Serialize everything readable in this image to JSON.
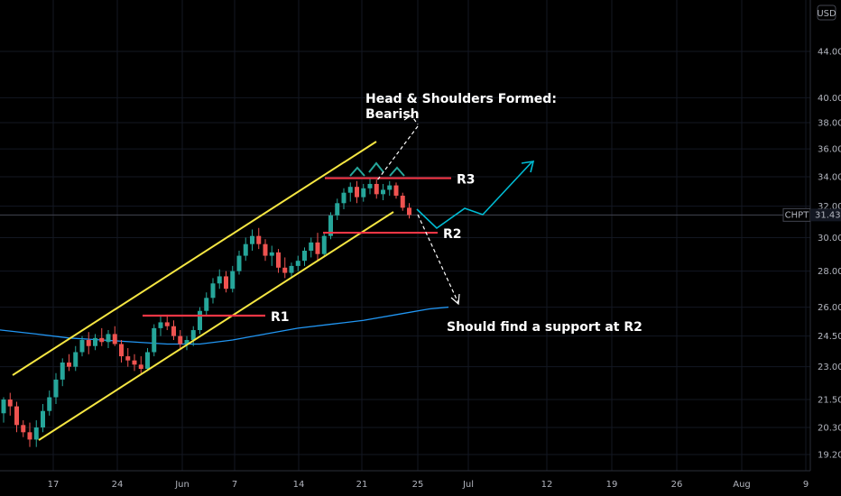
{
  "chart_data": {
    "type": "candlestick",
    "symbol": "CHPT",
    "currency": "USD",
    "last_price": 31.43,
    "y_scale": "log",
    "ylim": [
      18.5,
      50
    ],
    "y_ticks": [
      "44.00",
      "40.00",
      "38.00",
      "36.00",
      "34.00",
      "32.00",
      "30.00",
      "28.00",
      "26.00",
      "24.50",
      "23.00",
      "21.50",
      "20.30",
      "19.20"
    ],
    "x_ticks": [
      "17",
      "24",
      "Jun",
      "7",
      "14",
      "21",
      "25",
      "Jul",
      "12",
      "19",
      "26",
      "Aug",
      "9"
    ],
    "candles": [
      [
        20.9,
        21.6,
        20.5,
        21.5
      ],
      [
        21.5,
        21.8,
        20.8,
        21.2
      ],
      [
        21.2,
        21.4,
        20.1,
        20.4
      ],
      [
        20.4,
        20.6,
        19.9,
        20.1
      ],
      [
        20.1,
        20.5,
        19.5,
        19.8
      ],
      [
        19.8,
        20.6,
        19.5,
        20.3
      ],
      [
        20.3,
        21.3,
        20.1,
        21.0
      ],
      [
        21.0,
        21.9,
        20.8,
        21.6
      ],
      [
        21.6,
        22.7,
        21.3,
        22.4
      ],
      [
        22.4,
        23.4,
        22.1,
        23.2
      ],
      [
        23.2,
        23.6,
        22.8,
        23.0
      ],
      [
        23.0,
        24.0,
        22.8,
        23.7
      ],
      [
        23.7,
        24.5,
        23.5,
        24.3
      ],
      [
        24.3,
        24.7,
        23.6,
        24.0
      ],
      [
        24.0,
        24.6,
        23.8,
        24.4
      ],
      [
        24.4,
        24.9,
        24.0,
        24.2
      ],
      [
        24.2,
        24.8,
        23.9,
        24.6
      ],
      [
        24.6,
        25.0,
        24.0,
        24.1
      ],
      [
        24.1,
        24.3,
        23.2,
        23.5
      ],
      [
        23.5,
        23.9,
        23.0,
        23.3
      ],
      [
        23.3,
        23.6,
        22.8,
        23.1
      ],
      [
        23.1,
        23.5,
        22.7,
        22.9
      ],
      [
        22.9,
        23.9,
        22.8,
        23.7
      ],
      [
        23.7,
        25.1,
        23.5,
        24.9
      ],
      [
        24.9,
        25.5,
        24.5,
        25.2
      ],
      [
        25.2,
        25.6,
        24.8,
        25.0
      ],
      [
        25.0,
        25.3,
        24.3,
        24.5
      ],
      [
        24.5,
        24.8,
        23.8,
        24.1
      ],
      [
        24.1,
        24.5,
        23.8,
        24.3
      ],
      [
        24.3,
        25.0,
        24.0,
        24.8
      ],
      [
        24.8,
        26.0,
        24.6,
        25.8
      ],
      [
        25.8,
        26.8,
        25.5,
        26.5
      ],
      [
        26.5,
        27.6,
        26.2,
        27.3
      ],
      [
        27.3,
        28.1,
        27.0,
        27.7
      ],
      [
        27.7,
        28.0,
        26.8,
        27.0
      ],
      [
        27.0,
        28.3,
        26.8,
        28.0
      ],
      [
        28.0,
        29.2,
        27.8,
        28.9
      ],
      [
        28.9,
        30.0,
        28.6,
        29.6
      ],
      [
        29.6,
        30.5,
        29.2,
        30.1
      ],
      [
        30.1,
        30.6,
        29.3,
        29.6
      ],
      [
        29.6,
        29.9,
        28.6,
        28.9
      ],
      [
        28.9,
        29.5,
        28.3,
        29.1
      ],
      [
        29.1,
        29.3,
        27.9,
        28.2
      ],
      [
        28.2,
        28.8,
        27.6,
        27.9
      ],
      [
        27.9,
        28.5,
        27.6,
        28.3
      ],
      [
        28.3,
        28.9,
        28.0,
        28.6
      ],
      [
        28.6,
        29.4,
        28.3,
        29.2
      ],
      [
        29.2,
        30.0,
        28.8,
        29.7
      ],
      [
        29.7,
        30.3,
        28.6,
        29.0
      ],
      [
        29.0,
        30.3,
        28.8,
        30.1
      ],
      [
        30.1,
        31.6,
        29.9,
        31.4
      ],
      [
        31.4,
        32.5,
        31.1,
        32.2
      ],
      [
        32.2,
        33.2,
        31.8,
        32.9
      ],
      [
        32.9,
        33.6,
        32.3,
        33.3
      ],
      [
        33.3,
        33.7,
        32.2,
        32.6
      ],
      [
        32.6,
        33.5,
        32.3,
        33.2
      ],
      [
        33.2,
        33.9,
        32.8,
        33.5
      ],
      [
        33.5,
        33.8,
        32.5,
        32.8
      ],
      [
        32.8,
        33.5,
        32.4,
        33.1
      ],
      [
        33.1,
        33.7,
        32.7,
        33.4
      ],
      [
        33.4,
        33.6,
        32.5,
        32.7
      ],
      [
        32.7,
        32.9,
        31.7,
        31.9
      ],
      [
        31.9,
        32.2,
        31.2,
        31.43
      ]
    ],
    "ma_points": [
      [
        -3,
        24.9
      ],
      [
        5,
        24.6
      ],
      [
        10,
        24.4
      ],
      [
        15,
        24.3
      ],
      [
        20,
        24.2
      ],
      [
        25,
        24.1
      ],
      [
        30,
        24.1
      ],
      [
        35,
        24.3
      ],
      [
        40,
        24.6
      ],
      [
        45,
        24.9
      ],
      [
        50,
        25.1
      ],
      [
        55,
        25.3
      ],
      [
        60,
        25.6
      ],
      [
        65,
        25.9
      ],
      [
        68,
        26.0
      ]
    ],
    "colors": {
      "up": "#26a69a",
      "down": "#ef5350",
      "channel": "#f5e642",
      "level": "#f23645",
      "ma": "#2196f3",
      "projection": "#00bcd4",
      "annotation": "#ffffff"
    },
    "levels": [
      {
        "label": "R1",
        "price": 25.55
      },
      {
        "label": "R2",
        "price": 30.3
      },
      {
        "label": "R3",
        "price": 33.9
      }
    ],
    "annotations": {
      "title_line1": "Head & Shoulders Formed:",
      "title_line2": "Bearish",
      "support_note": "Should find a support at R2"
    }
  }
}
